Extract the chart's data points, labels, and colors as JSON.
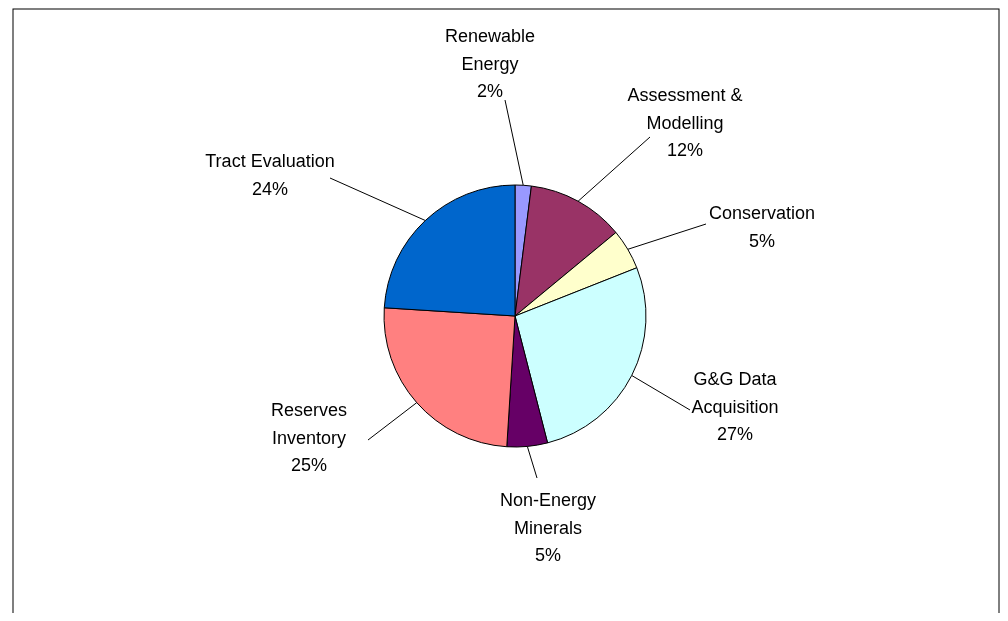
{
  "chart_data": {
    "type": "pie",
    "categories": [
      "Renewable Energy",
      "Assessment & Modelling",
      "Conservation",
      "G&G Data Acquisition",
      "Non-Energy Minerals",
      "Reserves Inventory",
      "Tract Evaluation"
    ],
    "values": [
      2,
      12,
      5,
      27,
      5,
      25,
      24
    ],
    "colors": [
      "#9999ff",
      "#993366",
      "#ffffcc",
      "#ccffff",
      "#660066",
      "#ff8080",
      "#0066cc"
    ],
    "value_labels": [
      "2%",
      "12%",
      "5%",
      "27%",
      "5%",
      "25%",
      "24%"
    ]
  }
}
